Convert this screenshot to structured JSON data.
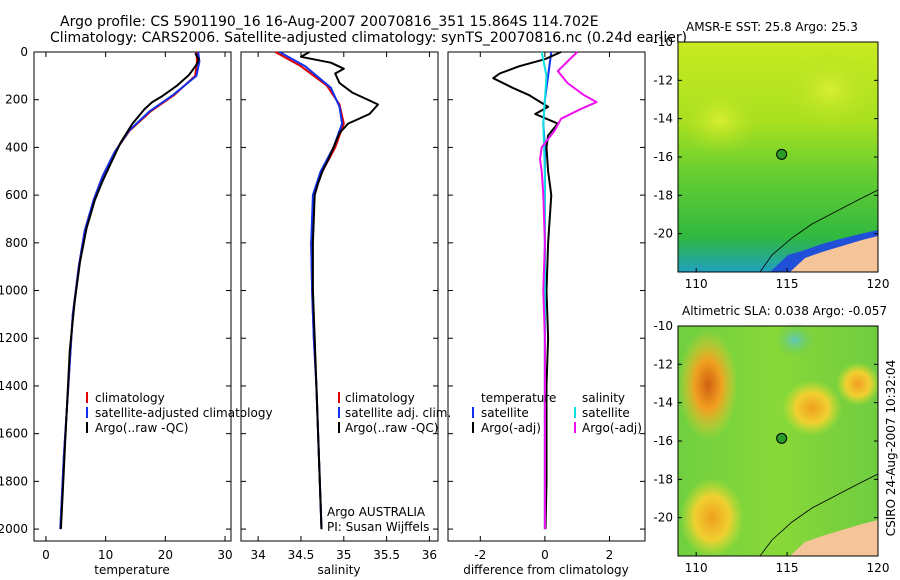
{
  "header": {
    "line1": "Argo profile: CS 5901190_16 16-Aug-2007 20070816_351 15.864S 114.702E",
    "line2": "Climatology: CARS2006. Satellite-adjusted climatology: synTS_20070816.nc (0.24d earlier)"
  },
  "colors": {
    "climatology": "#dd0000",
    "satellite": "#1030ee",
    "argo": "#000000",
    "argo_adj_salinity": "#ee10ee",
    "satellite_salinity": "#10e0e0"
  },
  "chart_data": [
    {
      "type": "line",
      "panel": "temperature",
      "xlabel": "temperature",
      "ylabel": "",
      "xlim": [
        -2,
        31
      ],
      "ylim": [
        2050,
        0
      ],
      "x_ticks": [
        0,
        10,
        20,
        30
      ],
      "y_ticks": [
        0,
        200,
        400,
        600,
        800,
        1000,
        1200,
        1400,
        1600,
        1800,
        2000
      ],
      "legend": [
        "climatology",
        "satellite-adjusted climatology",
        "Argo(..raw -QC)"
      ],
      "series": [
        {
          "name": "climatology",
          "color_key": "climatology",
          "points": [
            [
              25.2,
              0
            ],
            [
              25.3,
              40
            ],
            [
              25.0,
              100
            ],
            [
              21.5,
              180
            ],
            [
              17.5,
              250
            ],
            [
              14.0,
              330
            ],
            [
              11.5,
              420
            ],
            [
              9.5,
              520
            ],
            [
              8.0,
              620
            ],
            [
              6.5,
              750
            ],
            [
              5.5,
              900
            ],
            [
              4.5,
              1100
            ],
            [
              4.0,
              1300
            ],
            [
              3.5,
              1500
            ],
            [
              3.0,
              1700
            ],
            [
              2.6,
              1900
            ],
            [
              2.4,
              2000
            ]
          ]
        },
        {
          "name": "satellite-adjusted climatology",
          "color_key": "satellite",
          "points": [
            [
              25.5,
              0
            ],
            [
              25.7,
              40
            ],
            [
              25.2,
              100
            ],
            [
              21.3,
              180
            ],
            [
              17.3,
              250
            ],
            [
              13.9,
              330
            ],
            [
              11.5,
              420
            ],
            [
              9.5,
              520
            ],
            [
              8.0,
              620
            ],
            [
              6.5,
              750
            ],
            [
              5.5,
              900
            ],
            [
              4.5,
              1100
            ],
            [
              4.0,
              1300
            ],
            [
              3.5,
              1500
            ],
            [
              3.0,
              1700
            ],
            [
              2.6,
              1900
            ],
            [
              2.4,
              2000
            ]
          ]
        },
        {
          "name": "Argo(..raw -QC)",
          "color_key": "argo",
          "points": [
            [
              25.0,
              5
            ],
            [
              25.6,
              30
            ],
            [
              25.3,
              50
            ],
            [
              24.0,
              95
            ],
            [
              22.0,
              140
            ],
            [
              19.5,
              185
            ],
            [
              17.8,
              210
            ],
            [
              16.5,
              240
            ],
            [
              14.5,
              300
            ],
            [
              12.5,
              380
            ],
            [
              11.0,
              460
            ],
            [
              9.5,
              540
            ],
            [
              8.2,
              620
            ],
            [
              6.8,
              740
            ],
            [
              5.7,
              880
            ],
            [
              4.8,
              1050
            ],
            [
              4.0,
              1250
            ],
            [
              3.6,
              1450
            ],
            [
              3.2,
              1650
            ],
            [
              2.8,
              1850
            ],
            [
              2.5,
              2000
            ]
          ]
        }
      ]
    },
    {
      "type": "line",
      "panel": "salinity",
      "xlabel": "salinity",
      "ylabel": "",
      "xlim": [
        33.8,
        36.1
      ],
      "ylim": [
        2050,
        0
      ],
      "x_ticks": [
        34,
        34.5,
        35,
        35.5,
        36
      ],
      "y_ticks": [
        0,
        200,
        400,
        600,
        800,
        1000,
        1200,
        1400,
        1600,
        1800,
        2000
      ],
      "legend": [
        "climatology",
        "satellite adj. clim.",
        "Argo(..raw -QC)"
      ],
      "annotation": [
        "Argo AUSTRALIA",
        "PI: Susan Wijffels"
      ],
      "series": [
        {
          "name": "climatology",
          "color_key": "climatology",
          "points": [
            [
              34.2,
              0
            ],
            [
              34.5,
              60
            ],
            [
              34.8,
              140
            ],
            [
              34.95,
              220
            ],
            [
              35.0,
              300
            ],
            [
              34.9,
              400
            ],
            [
              34.75,
              500
            ],
            [
              34.65,
              600
            ],
            [
              34.62,
              800
            ],
            [
              34.63,
              1000
            ],
            [
              34.65,
              1200
            ],
            [
              34.68,
              1400
            ],
            [
              34.7,
              1600
            ],
            [
              34.72,
              1800
            ],
            [
              34.74,
              2000
            ]
          ]
        },
        {
          "name": "satellite adj. clim.",
          "color_key": "satellite",
          "points": [
            [
              34.25,
              0
            ],
            [
              34.55,
              60
            ],
            [
              34.85,
              150
            ],
            [
              34.95,
              230
            ],
            [
              34.98,
              300
            ],
            [
              34.88,
              400
            ],
            [
              34.73,
              500
            ],
            [
              34.64,
              600
            ],
            [
              34.62,
              800
            ],
            [
              34.63,
              1000
            ],
            [
              34.65,
              1200
            ],
            [
              34.68,
              1400
            ],
            [
              34.7,
              1600
            ],
            [
              34.72,
              1800
            ],
            [
              34.74,
              2000
            ]
          ]
        },
        {
          "name": "Argo(..raw -QC)",
          "color_key": "argo",
          "points": [
            [
              34.6,
              0
            ],
            [
              34.5,
              20
            ],
            [
              34.85,
              45
            ],
            [
              35.0,
              70
            ],
            [
              34.9,
              90
            ],
            [
              34.95,
              130
            ],
            [
              35.1,
              170
            ],
            [
              35.25,
              195
            ],
            [
              35.4,
              220
            ],
            [
              35.3,
              260
            ],
            [
              35.05,
              300
            ],
            [
              34.95,
              340
            ],
            [
              34.88,
              400
            ],
            [
              34.82,
              450
            ],
            [
              34.75,
              500
            ],
            [
              34.7,
              550
            ],
            [
              34.66,
              600
            ],
            [
              34.64,
              800
            ],
            [
              34.64,
              1000
            ],
            [
              34.66,
              1200
            ],
            [
              34.68,
              1400
            ],
            [
              34.7,
              1600
            ],
            [
              34.72,
              1800
            ],
            [
              34.74,
              2000
            ]
          ]
        }
      ]
    },
    {
      "type": "line",
      "panel": "difference",
      "xlabel": "difference from climatology",
      "ylabel": "",
      "xlim": [
        -3,
        3.1
      ],
      "ylim": [
        2050,
        0
      ],
      "x_ticks": [
        -2,
        0,
        2
      ],
      "y_ticks": [
        0,
        200,
        400,
        600,
        800,
        1000,
        1200,
        1400,
        1600,
        1800,
        2000
      ],
      "legend_headers": [
        "temperature",
        "salinity"
      ],
      "legend": [
        "satellite",
        "Argo(-adj)",
        "satellite",
        "Argo(-adj)"
      ],
      "series": [
        {
          "name": "satellite",
          "color_key": "satellite",
          "points": [
            [
              0.2,
              0
            ],
            [
              0.1,
              100
            ],
            [
              0.0,
              200
            ],
            [
              -0.05,
              300
            ],
            [
              0,
              400
            ],
            [
              0,
              2000
            ]
          ]
        },
        {
          "name": "Argo(-adj)",
          "color_key": "argo",
          "points": [
            [
              0.5,
              0
            ],
            [
              0.0,
              30
            ],
            [
              -0.8,
              60
            ],
            [
              -1.4,
              90
            ],
            [
              -1.6,
              110
            ],
            [
              -1.0,
              150
            ],
            [
              -0.5,
              180
            ],
            [
              0.1,
              230
            ],
            [
              -0.3,
              260
            ],
            [
              0.4,
              300
            ],
            [
              0.1,
              350
            ],
            [
              0.05,
              400
            ],
            [
              0.1,
              500
            ],
            [
              0.2,
              600
            ],
            [
              0.1,
              800
            ],
            [
              0.05,
              1000
            ],
            [
              0.1,
              1200
            ],
            [
              0.05,
              1400
            ],
            [
              0.05,
              1600
            ],
            [
              0.05,
              1800
            ],
            [
              0.02,
              2000
            ]
          ]
        },
        {
          "name": "satellite",
          "color_key": "satellite_salinity",
          "points": [
            [
              -0.1,
              0
            ],
            [
              0.05,
              100
            ],
            [
              0.0,
              200
            ],
            [
              -0.05,
              300
            ],
            [
              0,
              500
            ],
            [
              0,
              2000
            ]
          ]
        },
        {
          "name": "Argo(-adj)",
          "color_key": "argo_adj_salinity",
          "points": [
            [
              1.0,
              0
            ],
            [
              0.7,
              40
            ],
            [
              0.4,
              80
            ],
            [
              0.7,
              130
            ],
            [
              1.2,
              180
            ],
            [
              1.6,
              210
            ],
            [
              1.1,
              240
            ],
            [
              0.5,
              280
            ],
            [
              0.3,
              330
            ],
            [
              -0.1,
              400
            ],
            [
              -0.15,
              450
            ],
            [
              -0.1,
              500
            ],
            [
              -0.05,
              600
            ],
            [
              0,
              800
            ],
            [
              -0.05,
              1000
            ],
            [
              0,
              1200
            ],
            [
              0,
              2000
            ]
          ]
        }
      ]
    },
    {
      "type": "heatmap",
      "panel": "sst_map",
      "title": "AMSR-E SST: 25.8 Argo: 25.3",
      "xlim": [
        109,
        120
      ],
      "ylim": [
        -22,
        -10
      ],
      "x_ticks": [
        110,
        115,
        120
      ],
      "y_ticks": [
        -10,
        -12,
        -14,
        -16,
        -18,
        -20
      ],
      "marker": {
        "lon": 114.7,
        "lat": -15.86
      }
    },
    {
      "type": "heatmap",
      "panel": "sla_map",
      "title": "Altimetric SLA: 0.038 Argo: -0.057",
      "xlim": [
        109,
        120
      ],
      "ylim": [
        -22,
        -10
      ],
      "x_ticks": [
        110,
        115,
        120
      ],
      "y_ticks": [
        -10,
        -12,
        -14,
        -16,
        -18,
        -20
      ],
      "marker": {
        "lon": 114.7,
        "lat": -15.86
      }
    }
  ],
  "side_label": "CSIRO 24-Aug-2007 10:32:04"
}
